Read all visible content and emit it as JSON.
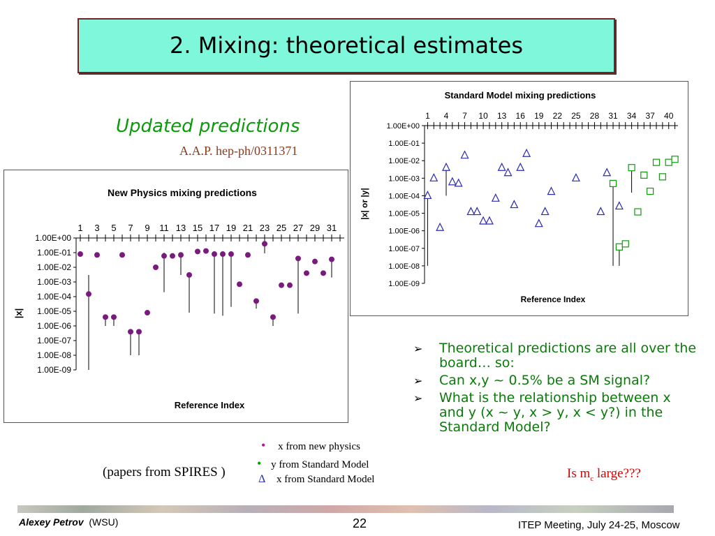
{
  "slide": {
    "title": "2. Mixing: theoretical estimates",
    "subtitle": "Updated predictions",
    "reference": "A.A.P. hep-ph/0311371",
    "bullets": [
      "Theoretical predictions are all over the board… so:",
      "Can x,y ~ 0.5% be a SM signal?",
      "What is the relationship between x and y (x ~ y, x > y, x < y?) in the Standard Model?"
    ],
    "bullet_marker": "➢",
    "legend": [
      {
        "symbol": "•",
        "label": "x from new physics",
        "color": "#b01a8e"
      },
      {
        "symbol": "•",
        "label": "y from Standard Model",
        "color": "#0a9b0a"
      },
      {
        "symbol": "Δ",
        "label": "x from Standard Model",
        "color": "#2a2ab0"
      }
    ],
    "papers_note": "(papers from SPIRES )",
    "is_mc": "Is m",
    "is_mc_sub": "c",
    "is_mc_tail": " large???"
  },
  "footer": {
    "author": "Alexey Petrov",
    "affiliation": "(WSU)",
    "page": "22",
    "meeting": "ITEP Meeting, July 24-25, Moscow"
  },
  "chart_data": [
    {
      "type": "scatter",
      "title": "New Physics mixing predictions",
      "xlabel": "Reference Index",
      "ylabel": "|x|",
      "y_scale": "log",
      "ylim": [
        1e-09,
        1
      ],
      "y_tick_labels": [
        "1.00E+00",
        "1.00E-01",
        "1.00E-02",
        "1.00E-03",
        "1.00E-04",
        "1.00E-05",
        "1.00E-06",
        "1.00E-07",
        "1.00E-08",
        "1.00E-09"
      ],
      "x_tick_labels": [
        "1",
        "3",
        "5",
        "7",
        "9",
        "11",
        "13",
        "15",
        "17",
        "19",
        "21",
        "23",
        "25",
        "27",
        "29",
        "31"
      ],
      "xlim": [
        0.5,
        32.5
      ],
      "x_axis_position": "top",
      "marker_color": "#7a1a7e",
      "points": [
        {
          "x": 1,
          "y": 0.08
        },
        {
          "x": 2,
          "y": 0.00015,
          "low": 1e-09,
          "high": 0.003
        },
        {
          "x": 3,
          "y": 0.07
        },
        {
          "x": 4,
          "y": 4e-06,
          "low": 1e-06,
          "high": 4e-06
        },
        {
          "x": 5,
          "y": 4e-06,
          "low": 1e-06,
          "high": 4e-06
        },
        {
          "x": 6,
          "y": 0.07
        },
        {
          "x": 7,
          "y": 4e-07,
          "low": 1e-08,
          "high": 4e-07
        },
        {
          "x": 8,
          "y": 4e-07,
          "low": 1e-08,
          "high": 4e-07
        },
        {
          "x": 9,
          "y": 8e-06
        },
        {
          "x": 10,
          "y": 0.01
        },
        {
          "x": 11,
          "y": 0.06,
          "low": 0.0002,
          "high": 0.1
        },
        {
          "x": 12,
          "y": 0.06
        },
        {
          "x": 13,
          "y": 0.07,
          "low": 0.003,
          "high": 0.07
        },
        {
          "x": 14,
          "y": 0.003,
          "low": 8e-06,
          "high": 0.003
        },
        {
          "x": 15,
          "y": 0.12
        },
        {
          "x": 16,
          "y": 0.13
        },
        {
          "x": 17,
          "y": 0.08,
          "low": 7e-06,
          "high": 0.08
        },
        {
          "x": 18,
          "y": 0.08,
          "low": 5e-06,
          "high": 0.08
        },
        {
          "x": 19,
          "y": 0.08,
          "low": 2e-05,
          "high": 0.08
        },
        {
          "x": 20,
          "y": 0.0007
        },
        {
          "x": 21,
          "y": 0.07
        },
        {
          "x": 22,
          "y": 5e-05,
          "low": 1.5e-05,
          "high": 5e-05
        },
        {
          "x": 23,
          "y": 0.4,
          "low": 0.09,
          "high": 0.4
        },
        {
          "x": 24,
          "y": 4e-06,
          "low": 1e-06,
          "high": 4e-06
        },
        {
          "x": 25,
          "y": 0.0006
        },
        {
          "x": 26,
          "y": 0.0006
        },
        {
          "x": 27,
          "y": 0.04,
          "low": 7e-06,
          "high": 0.04
        },
        {
          "x": 28,
          "y": 0.004
        },
        {
          "x": 29,
          "y": 0.025
        },
        {
          "x": 30,
          "y": 0.004
        },
        {
          "x": 31,
          "y": 0.035,
          "low": 0.002,
          "high": 0.035
        }
      ]
    },
    {
      "type": "scatter",
      "title": "Standard Model mixing predictions",
      "xlabel": "Reference Index",
      "ylabel": "|x| or |y|",
      "y_scale": "log",
      "ylim": [
        1e-09,
        1
      ],
      "y_tick_labels": [
        "1.00E+00",
        "1.00E-01",
        "1.00E-02",
        "1.00E-03",
        "1.00E-04",
        "1.00E-05",
        "1.00E-06",
        "1.00E-07",
        "1.00E-08",
        "1.00E-09"
      ],
      "x_tick_labels": [
        "1",
        "4",
        "7",
        "10",
        "13",
        "16",
        "19",
        "22",
        "25",
        "28",
        "31",
        "34",
        "37",
        "40"
      ],
      "xlim": [
        0.5,
        41.5
      ],
      "x_axis_position": "top",
      "series": [
        {
          "name": "x from Standard Model",
          "marker": "triangle",
          "color": "#2a2ab0",
          "points": [
            {
              "x": 1,
              "y": 0.0001,
              "low": 1e-08,
              "high": 0.0001
            },
            {
              "x": 2,
              "y": 0.001
            },
            {
              "x": 3,
              "y": 1.5e-06
            },
            {
              "x": 4,
              "y": 0.004,
              "low": 0.0001,
              "high": 0.004
            },
            {
              "x": 5,
              "y": 0.0006
            },
            {
              "x": 6,
              "y": 0.0005
            },
            {
              "x": 7,
              "y": 0.02
            },
            {
              "x": 8,
              "y": 1.2e-05
            },
            {
              "x": 9,
              "y": 1.2e-05
            },
            {
              "x": 10,
              "y": 3.5e-06
            },
            {
              "x": 11,
              "y": 3.5e-06
            },
            {
              "x": 12,
              "y": 7e-05
            },
            {
              "x": 13,
              "y": 0.004
            },
            {
              "x": 14,
              "y": 0.002
            },
            {
              "x": 15,
              "y": 3e-05
            },
            {
              "x": 16,
              "y": 0.004
            },
            {
              "x": 17,
              "y": 0.025
            },
            {
              "x": 19,
              "y": 2.5e-06
            },
            {
              "x": 20,
              "y": 1.2e-05
            },
            {
              "x": 21,
              "y": 0.00017
            },
            {
              "x": 25,
              "y": 0.001
            },
            {
              "x": 29,
              "y": 1.2e-05
            },
            {
              "x": 30,
              "y": 0.002
            },
            {
              "x": 32,
              "y": 2.5e-05
            }
          ]
        },
        {
          "name": "y from Standard Model",
          "marker": "square",
          "color": "#0a9b0a",
          "points": [
            {
              "x": 31,
              "y": 0.0005,
              "low": 1e-08,
              "high": 0.0005
            },
            {
              "x": 32,
              "y": 1.2e-07,
              "low": 1e-08,
              "high": 1.2e-07
            },
            {
              "x": 33,
              "y": 1.8e-07
            },
            {
              "x": 34,
              "y": 0.004,
              "low": 0.00015,
              "high": 0.004
            },
            {
              "x": 35,
              "y": 1.2e-05
            },
            {
              "x": 36,
              "y": 0.0015
            },
            {
              "x": 37,
              "y": 0.00018
            },
            {
              "x": 38,
              "y": 0.008
            },
            {
              "x": 39,
              "y": 0.0012
            },
            {
              "x": 40,
              "y": 0.008
            },
            {
              "x": 41,
              "y": 0.012
            }
          ]
        }
      ]
    }
  ]
}
